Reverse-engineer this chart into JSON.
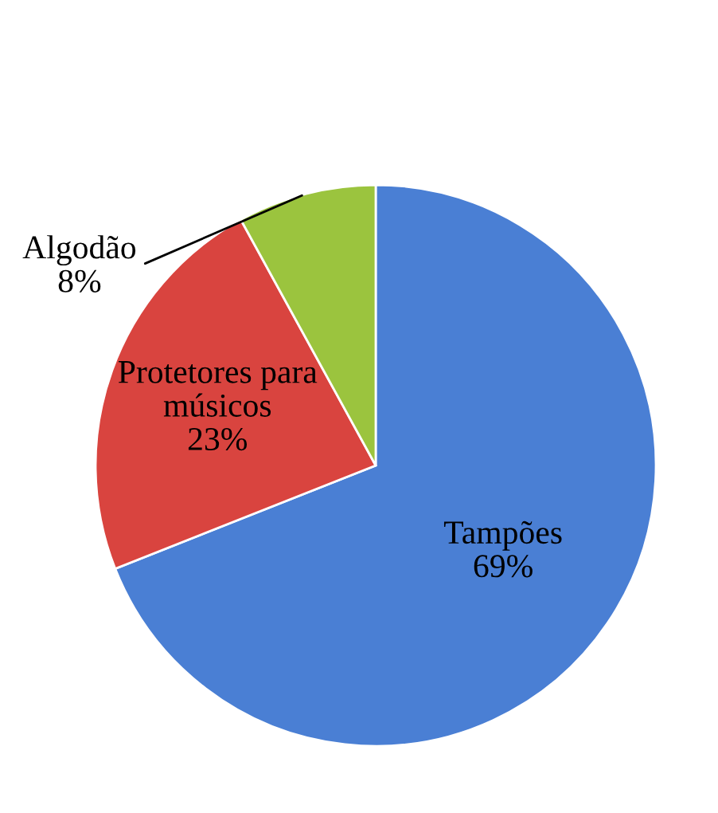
{
  "chart_data": {
    "type": "pie",
    "categories": [
      "Tampões",
      "Protetores para\nmúsicos",
      "Algodão"
    ],
    "values": [
      69,
      23,
      8
    ],
    "colors": [
      "#4a7fd4",
      "#d9443f",
      "#9bc43e"
    ],
    "value_labels": [
      "69%",
      "23%",
      "8%"
    ]
  }
}
